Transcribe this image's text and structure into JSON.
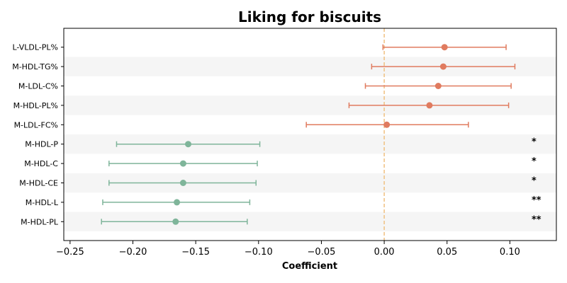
{
  "chart_data": {
    "type": "forest",
    "title": "Liking for biscuits",
    "xlabel": "Coefficient",
    "ylabel": "",
    "xlim": [
      -0.255,
      0.137
    ],
    "xticks": [
      -0.25,
      -0.2,
      -0.15,
      -0.1,
      -0.05,
      0.0,
      0.05,
      0.1
    ],
    "xtick_labels": [
      "−0.25",
      "−0.20",
      "−0.15",
      "−0.10",
      "−0.05",
      "0.00",
      "0.05",
      "0.10"
    ],
    "reference_line": 0,
    "alternating_row_bands": true,
    "colors": {
      "positive": "#e07b5f",
      "negative": "#7fb59a",
      "reference": "#f0c080",
      "band": "#f5f5f5"
    },
    "rows": [
      {
        "label": "L-VLDL-PL%",
        "coef": 0.048,
        "low": -0.001,
        "high": 0.097,
        "sig": ""
      },
      {
        "label": "M-HDL-TG%",
        "coef": 0.047,
        "low": -0.01,
        "high": 0.104,
        "sig": ""
      },
      {
        "label": "M-LDL-C%",
        "coef": 0.043,
        "low": -0.015,
        "high": 0.101,
        "sig": ""
      },
      {
        "label": "M-HDL-PL%",
        "coef": 0.036,
        "low": -0.028,
        "high": 0.099,
        "sig": ""
      },
      {
        "label": "M-LDL-FC%",
        "coef": 0.002,
        "low": -0.062,
        "high": 0.067,
        "sig": ""
      },
      {
        "label": "M-HDL-P",
        "coef": -0.156,
        "low": -0.213,
        "high": -0.099,
        "sig": "*"
      },
      {
        "label": "M-HDL-C",
        "coef": -0.16,
        "low": -0.219,
        "high": -0.101,
        "sig": "*"
      },
      {
        "label": "M-HDL-CE",
        "coef": -0.16,
        "low": -0.219,
        "high": -0.102,
        "sig": "*"
      },
      {
        "label": "M-HDL-L",
        "coef": -0.165,
        "low": -0.224,
        "high": -0.107,
        "sig": "**"
      },
      {
        "label": "M-HDL-PL",
        "coef": -0.166,
        "low": -0.225,
        "high": -0.109,
        "sig": "**"
      }
    ]
  }
}
